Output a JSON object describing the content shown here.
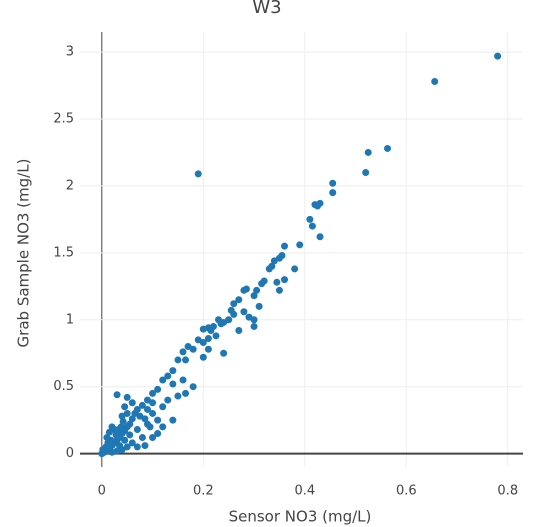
{
  "chart_data": {
    "type": "scatter",
    "title": "W3",
    "x_label": "Sensor NO3 (mg/L)",
    "y_label": "Grab Sample NO3 (mg/L)",
    "color": "#1f77b4",
    "grid": true,
    "xlim": [
      -0.043,
      0.83
    ],
    "ylim": [
      -0.1,
      3.15
    ],
    "xticks": [
      0,
      0.2,
      0.4,
      0.6,
      0.8
    ],
    "yticks": [
      0,
      0.5,
      1,
      1.5,
      2,
      2.5,
      3
    ],
    "x": [
      0.78,
      0.656,
      0.563,
      0.525,
      0.52,
      0.19,
      0.455,
      0.455,
      0.42,
      0.43,
      0.425,
      0.41,
      0.415,
      0.43,
      0.39,
      0.36,
      0.35,
      0.355,
      0.34,
      0.335,
      0.33,
      0.38,
      0.36,
      0.345,
      0.35,
      0.32,
      0.315,
      0.305,
      0.3,
      0.28,
      0.285,
      0.31,
      0.29,
      0.3,
      0.27,
      0.26,
      0.26,
      0.25,
      0.24,
      0.235,
      0.23,
      0.22,
      0.21,
      0.2,
      0.215,
      0.225,
      0.21,
      0.2,
      0.19,
      0.17,
      0.18,
      0.16,
      0.165,
      0.15,
      0.14,
      0.13,
      0.12,
      0.14,
      0.16,
      0.18,
      0.165,
      0.15,
      0.2,
      0.21,
      0.24,
      0.27,
      0.3,
      0.255,
      0.28,
      0.11,
      0.1,
      0.09,
      0.08,
      0.07,
      0.065,
      0.06,
      0.055,
      0.05,
      0.045,
      0.04,
      0.035,
      0.03,
      0.025,
      0.02,
      0.015,
      0.01,
      0.005,
      0,
      0.002,
      0.008,
      0.012,
      0.018,
      0.028,
      0.033,
      0.038,
      0.042,
      0.03,
      0.05,
      0.06,
      0.07,
      0.08,
      0.09,
      0.1,
      0.11,
      0.12,
      0.1,
      0.085,
      0.07,
      0.06,
      0.05,
      0.04,
      0.03,
      0.02,
      0.045,
      0.055,
      0.025,
      0.015,
      0.02,
      0.01,
      0.035,
      0.13,
      0.12,
      0.1,
      0.09,
      0.075,
      0.085,
      0.095,
      0.11,
      0.14,
      0.05,
      0.04,
      0.045
    ],
    "y": [
      2.97,
      2.78,
      2.28,
      2.25,
      2.1,
      2.09,
      2.02,
      1.95,
      1.86,
      1.87,
      1.85,
      1.75,
      1.7,
      1.62,
      1.56,
      1.55,
      1.46,
      1.48,
      1.44,
      1.4,
      1.38,
      1.38,
      1.3,
      1.28,
      1.22,
      1.29,
      1.27,
      1.22,
      1.18,
      1.22,
      1.23,
      1.1,
      1.02,
      1.0,
      1.15,
      1.12,
      1.04,
      1.0,
      0.98,
      0.97,
      1.0,
      0.95,
      0.94,
      0.93,
      0.92,
      0.88,
      0.86,
      0.83,
      0.85,
      0.8,
      0.78,
      0.76,
      0.7,
      0.7,
      0.62,
      0.58,
      0.55,
      0.52,
      0.55,
      0.5,
      0.45,
      0.43,
      0.72,
      0.78,
      0.75,
      0.92,
      0.95,
      1.07,
      1.06,
      0.48,
      0.45,
      0.4,
      0.36,
      0.33,
      0.3,
      0.26,
      0.22,
      0.2,
      0.17,
      0.15,
      0.12,
      0.1,
      0.08,
      0.06,
      0.04,
      0.02,
      0.01,
      0,
      0.03,
      0.05,
      0.08,
      0.1,
      0.14,
      0.18,
      0.2,
      0.24,
      0.44,
      0.42,
      0.38,
      0.18,
      0.12,
      0.22,
      0.3,
      0.25,
      0.2,
      0.12,
      0.06,
      0.05,
      0.08,
      0.05,
      0.03,
      0.02,
      0.01,
      0.1,
      0.14,
      0.18,
      0.16,
      0.2,
      0.12,
      0.06,
      0.4,
      0.35,
      0.38,
      0.33,
      0.28,
      0.26,
      0.2,
      0.15,
      0.25,
      0.3,
      0.28,
      0.35
    ]
  }
}
